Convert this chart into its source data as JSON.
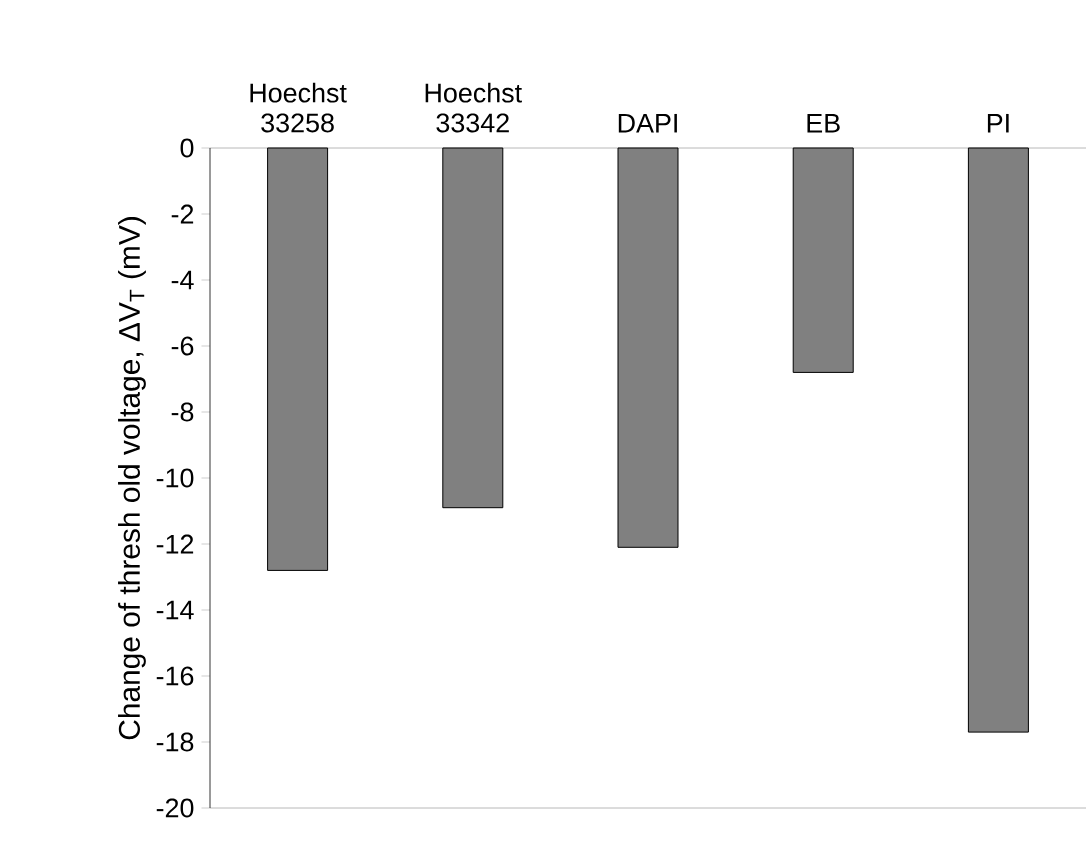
{
  "chart_data": {
    "type": "bar",
    "ylabel": "Change of thresh old voltage, ΔV$_{T}$ (mV)",
    "categories": [
      "Hoechst 33258",
      "Hoechst 33342",
      "DAPI",
      "EB",
      "PI"
    ],
    "values": [
      -12.8,
      -10.9,
      -12.1,
      -6.8,
      -17.7
    ],
    "color": "#808080",
    "ylim": [
      -20,
      0
    ],
    "yticks": [
      -20,
      -18,
      -16,
      -14,
      -12,
      -10,
      -8,
      -6,
      -4,
      -2,
      0
    ],
    "grid": false
  }
}
